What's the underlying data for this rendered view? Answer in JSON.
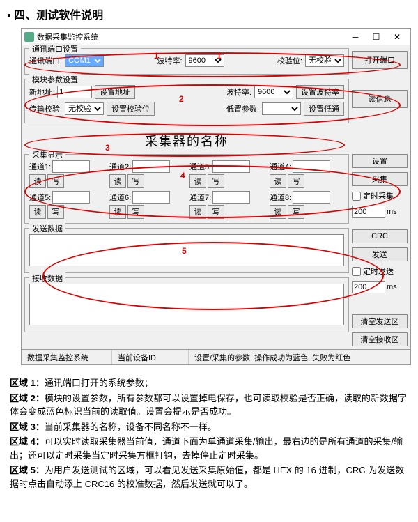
{
  "page_heading": "四、测试软件说明",
  "window": {
    "title": "数据采集监控系统",
    "port_group": {
      "title": "通讯端口设置",
      "port_label": "通讯端口:",
      "port_value": "COM1",
      "baud_label": "波特率:",
      "baud_value": "9600",
      "parity_label": "校验位:",
      "parity_value": "无校验",
      "open_btn": "打开端口"
    },
    "module_group": {
      "title": "模块参数设置",
      "addr_label": "新地址:",
      "addr_value": "1",
      "set_addr_btn": "设置地址",
      "baud_label": "波特率:",
      "baud_value": "9600",
      "set_baud_btn": "设置波特率",
      "parity_label": "传输校验:",
      "parity_value": "无校验",
      "set_parity_btn": "设置校验位",
      "range_label": "低置参数:",
      "set_range_btn": "设置低通",
      "read_info_btn": "读信息"
    },
    "collector_name": "采集器的名称",
    "display_group": {
      "title": "采集显示",
      "channels": [
        {
          "label": "通道1:",
          "val": ""
        },
        {
          "label": "通道2:",
          "val": ""
        },
        {
          "label": "通道3:",
          "val": ""
        },
        {
          "label": "通道4:",
          "val": ""
        },
        {
          "label": "通道5:",
          "val": ""
        },
        {
          "label": "通道6:",
          "val": ""
        },
        {
          "label": "通道7:",
          "val": ""
        },
        {
          "label": "通道8:",
          "val": ""
        }
      ],
      "read_btn": "读",
      "write_btn": "写",
      "set_btn": "设置",
      "collect_btn": "采集",
      "timer_chk": "定时采集",
      "timer_val": "200",
      "ms": "ms"
    },
    "send_group": {
      "title": "发送数据",
      "crc_btn": "CRC",
      "send_btn": "发送",
      "timer_chk": "定时发送",
      "timer_val": "200",
      "ms": "ms"
    },
    "recv_group": {
      "title": "接收数据",
      "clear_send_btn": "清空发送区",
      "clear_recv_btn": "清空接收区"
    },
    "statusbar": {
      "s1": "数据采集监控系统",
      "s2": "当前设备ID",
      "s3": "设置/采集的参数, 操作成功为蓝色, 失败为红色"
    }
  },
  "zones": {
    "z1": "1",
    "z1b": "1",
    "z2": "2",
    "z3": "3",
    "z4": "4",
    "z5": "5"
  },
  "descriptions": {
    "d1a": "区域 1：",
    "d1b": "通讯端口打开的系统参数；",
    "d2a": "区域 2：",
    "d2b": "模块的设置参数，所有参数都可以设置掉电保存，也可读取校验是否正确，读取的新数据字体会变成蓝色标识当前的读取值。设置会提示是否成功。",
    "d3a": "区域 3：",
    "d3b": "当前采集器的名称，设备不同名称不一样。",
    "d4a": "区域 4：",
    "d4b": "可以实时读取采集器当前值，通道下面为单通道采集/输出，最右边的是所有通道的采集/输出；还可以定时采集当定时采集方框打钩，去掉停止定时采集。",
    "d5a": "区域 5：",
    "d5b": "为用户发送测试的区域，可以看见发送采集原始值，都是 HEX 的 16 进制，CRC 为发送数据时点击自动添上 CRC16 的校准数据，然后发送就可以了。"
  }
}
